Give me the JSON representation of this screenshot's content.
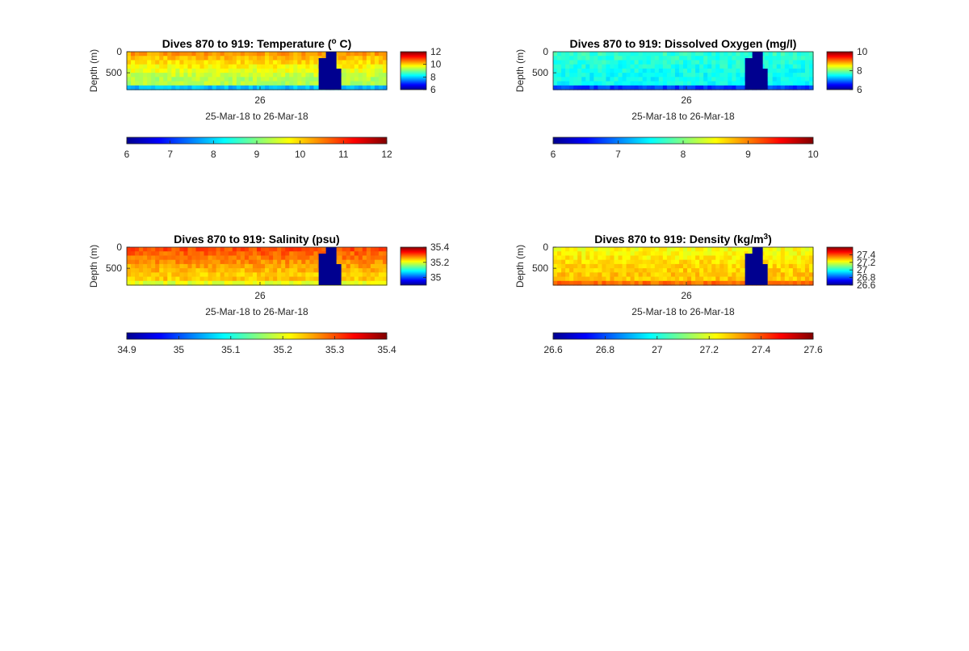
{
  "figure": {
    "colormap": [
      "#00008f",
      "#0000ff",
      "#0080ff",
      "#00ffff",
      "#80ff80",
      "#ffff00",
      "#ff8000",
      "#ff0000",
      "#800000"
    ],
    "background": "#ffffff"
  },
  "chart_data": [
    {
      "type": "heatmap",
      "title_main": "Dives 870 to 919: Temperature (",
      "title_sup": "o",
      "title_tail": " C)",
      "ylabel": "Depth (m)",
      "xlabel": "25-Mar-18 to 26-Mar-18",
      "x_ticks": [
        "26"
      ],
      "y_ticks": [
        "0",
        "500"
      ],
      "y_range": [
        0,
        900
      ],
      "side_colorbar": {
        "ticks": [
          "12",
          "10",
          "8",
          "6"
        ],
        "range": [
          6,
          12
        ]
      },
      "bottom_colorbar": {
        "ticks": [
          "6",
          "7",
          "8",
          "9",
          "10",
          "11",
          "12"
        ],
        "range": [
          6,
          12
        ]
      },
      "field": {
        "surface_level": 0.72,
        "deep_level": 0.55,
        "bottom_level": 0.18,
        "missing_color": "#00008f"
      }
    },
    {
      "type": "heatmap",
      "title_main": "Dives 870 to 919: Dissolved Oxygen (mg/l)",
      "title_sup": "",
      "title_tail": "",
      "ylabel": "Depth (m)",
      "xlabel": "25-Mar-18 to 26-Mar-18",
      "x_ticks": [
        "26"
      ],
      "y_ticks": [
        "0",
        "500"
      ],
      "y_range": [
        0,
        900
      ],
      "side_colorbar": {
        "ticks": [
          "10",
          "8",
          "6"
        ],
        "range": [
          6,
          10
        ]
      },
      "bottom_colorbar": {
        "ticks": [
          "6",
          "7",
          "8",
          "9",
          "10"
        ],
        "range": [
          6,
          10
        ]
      },
      "field": {
        "surface_level": 0.42,
        "deep_level": 0.38,
        "bottom_level": 0.08,
        "missing_color": "#00008f"
      }
    },
    {
      "type": "heatmap",
      "title_main": "Dives 870 to 919: Salinity (psu)",
      "title_sup": "",
      "title_tail": "",
      "ylabel": "Depth (m)",
      "xlabel": "25-Mar-18 to 26-Mar-18",
      "x_ticks": [
        "26"
      ],
      "y_ticks": [
        "0",
        "500"
      ],
      "y_range": [
        0,
        900
      ],
      "side_colorbar": {
        "ticks": [
          "35.4",
          "35.2",
          "35"
        ],
        "range": [
          34.9,
          35.4
        ]
      },
      "bottom_colorbar": {
        "ticks": [
          "34.9",
          "35",
          "35.1",
          "35.2",
          "35.3",
          "35.4"
        ],
        "range": [
          34.9,
          35.4
        ]
      },
      "field": {
        "surface_level": 0.8,
        "deep_level": 0.68,
        "bottom_level": 0.55,
        "missing_color": "#00008f"
      }
    },
    {
      "type": "heatmap",
      "title_main": "Dives 870 to 919: Density (kg/m",
      "title_sup": "3",
      "title_tail": ")",
      "ylabel": "Depth (m)",
      "xlabel": "25-Mar-18 to 26-Mar-18",
      "x_ticks": [
        "26"
      ],
      "y_ticks": [
        "0",
        "500"
      ],
      "y_range": [
        0,
        900
      ],
      "side_colorbar": {
        "ticks": [
          "27.4",
          "27.2",
          "27",
          "26.8",
          "26.6"
        ],
        "range": [
          26.6,
          27.6
        ]
      },
      "bottom_colorbar": {
        "ticks": [
          "26.6",
          "26.8",
          "27",
          "27.2",
          "27.4",
          "27.6"
        ],
        "range": [
          26.6,
          27.6
        ]
      },
      "field": {
        "surface_level": 0.62,
        "deep_level": 0.68,
        "bottom_level": 0.82,
        "missing_color": "#00008f"
      }
    }
  ]
}
